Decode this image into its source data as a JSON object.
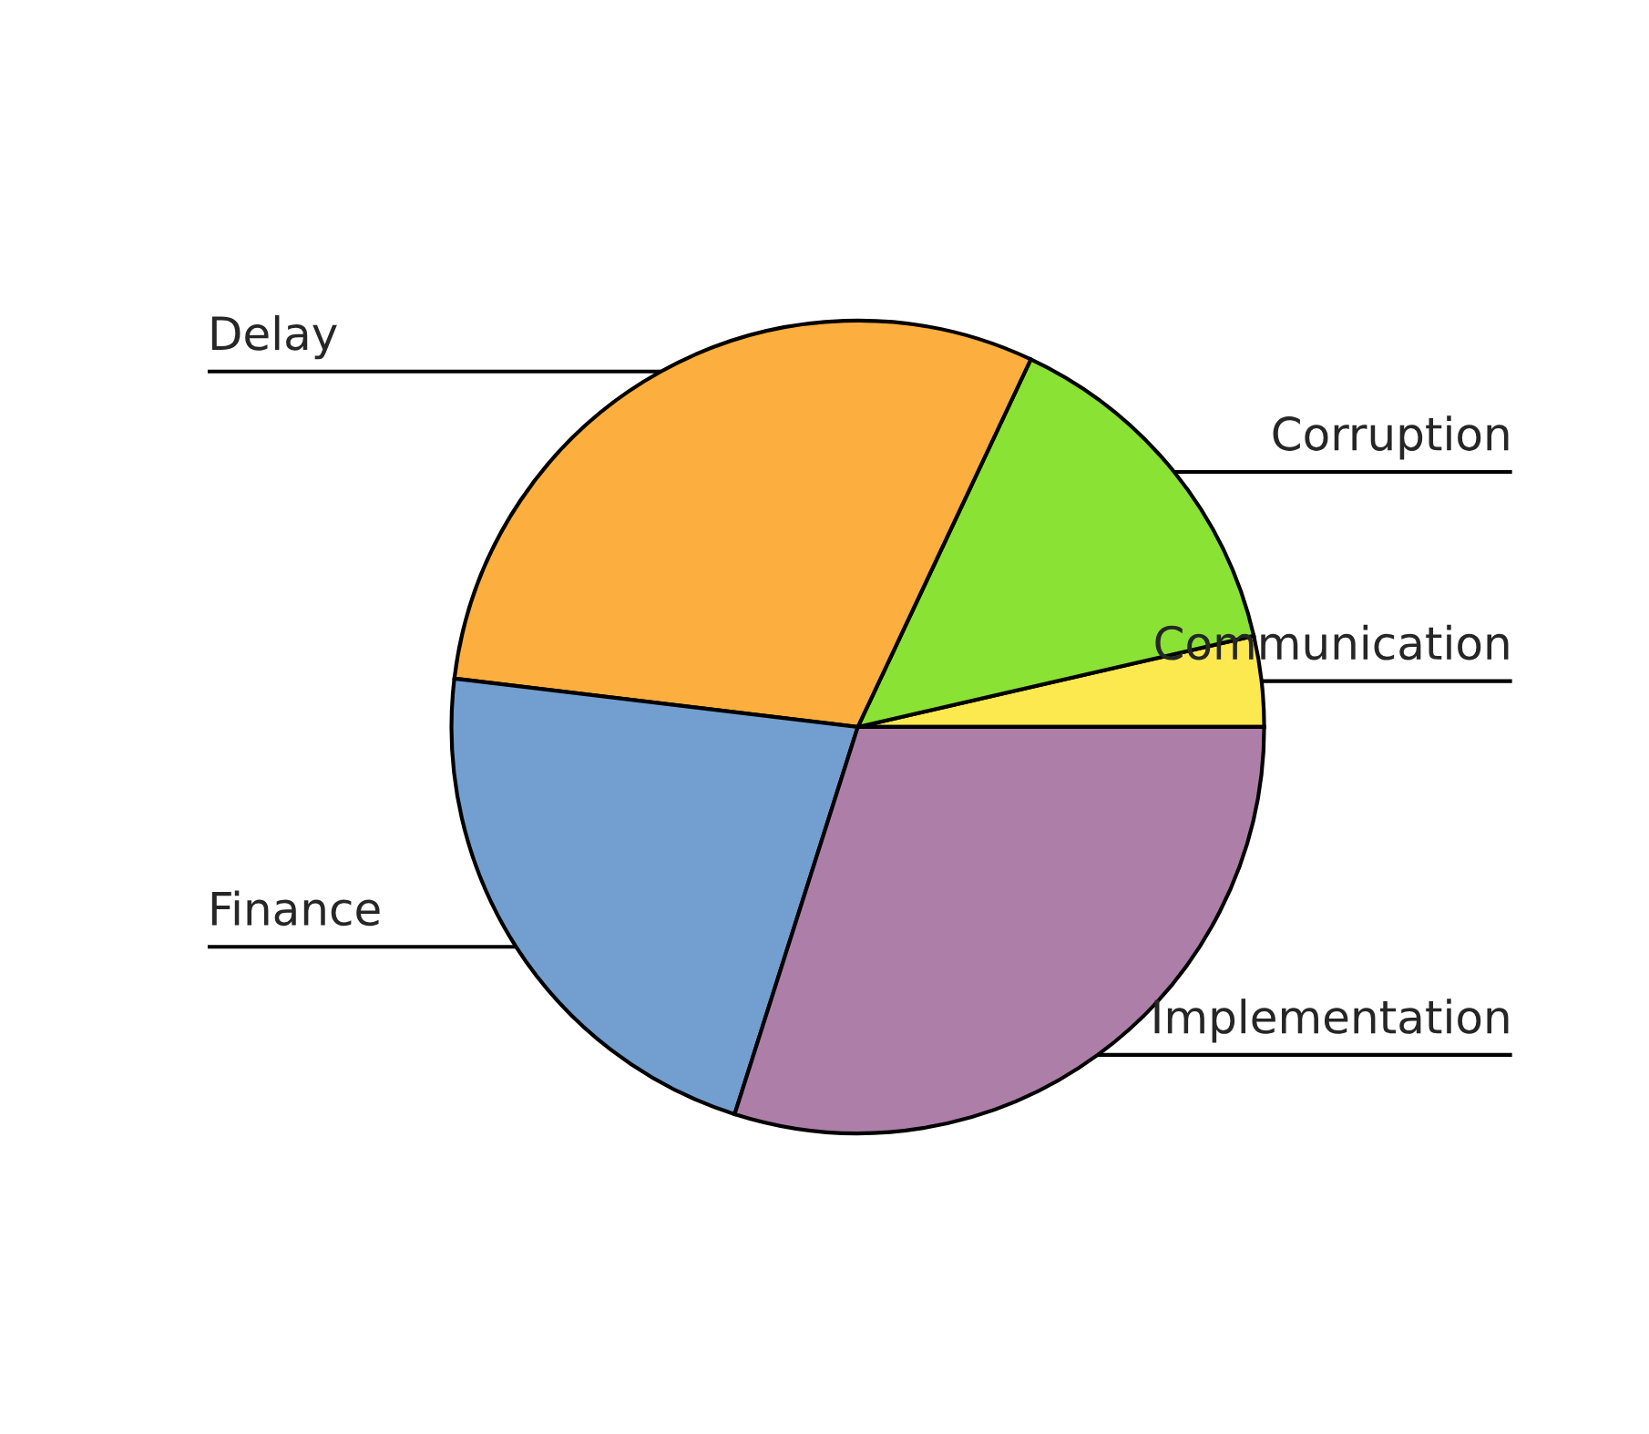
{
  "chart_data": {
    "type": "pie",
    "categories": [
      "Communication",
      "Corruption",
      "Delay",
      "Finance",
      "Implementation"
    ],
    "values": [
      3.6,
      14.4,
      30.1,
      22.0,
      29.9
    ],
    "colors": [
      "#fce94f",
      "#8ae234",
      "#fcaf3e",
      "#729fcf",
      "#ad7fa8"
    ],
    "legend": false
  }
}
